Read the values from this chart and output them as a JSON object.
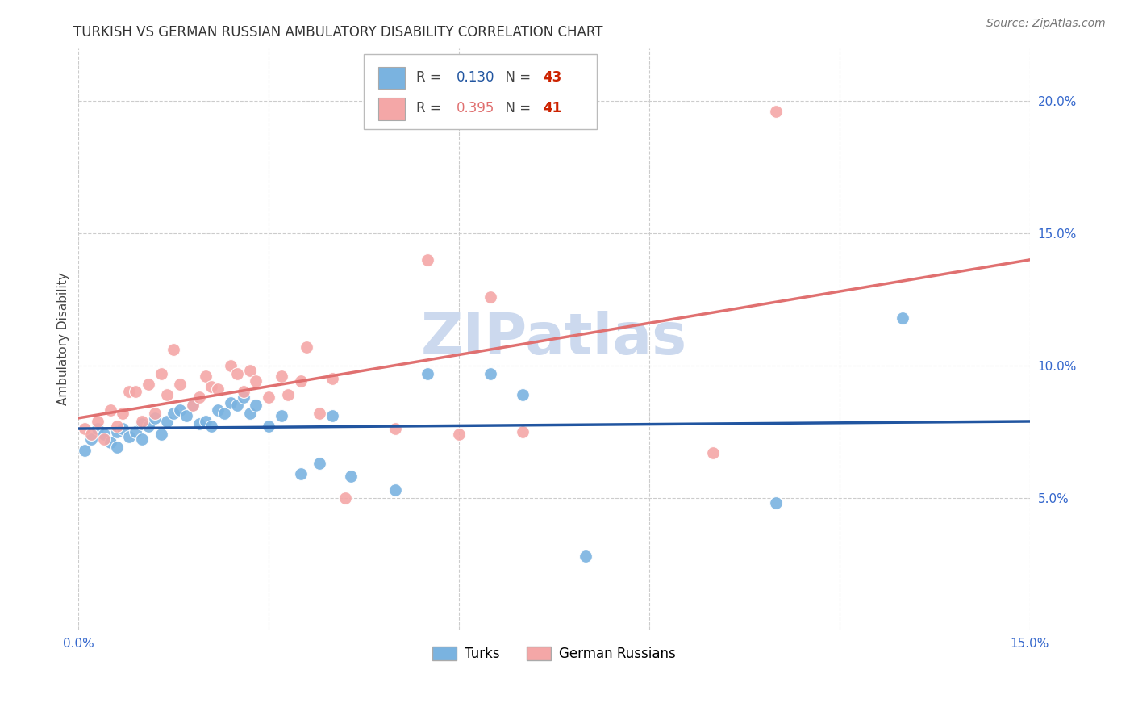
{
  "title": "TURKISH VS GERMAN RUSSIAN AMBULATORY DISABILITY CORRELATION CHART",
  "source": "Source: ZipAtlas.com",
  "ylabel": "Ambulatory Disability",
  "xlim": [
    0.0,
    0.15
  ],
  "ylim": [
    0.0,
    0.22
  ],
  "xtick_positions": [
    0.0,
    0.03,
    0.06,
    0.09,
    0.12,
    0.15
  ],
  "xtick_labels": [
    "0.0%",
    "",
    "",
    "",
    "",
    "15.0%"
  ],
  "ytick_right_vals": [
    0.05,
    0.1,
    0.15,
    0.2
  ],
  "ytick_right_labels": [
    "5.0%",
    "10.0%",
    "15.0%",
    "20.0%"
  ],
  "turks_color": "#7ab3e0",
  "german_russians_color": "#f4a7a7",
  "turks_line_color": "#2155a0",
  "german_russians_line_color": "#e07070",
  "turks_R": 0.13,
  "turks_N": 43,
  "german_russians_R": 0.395,
  "german_russians_N": 41,
  "turks_x": [
    0.001,
    0.002,
    0.003,
    0.004,
    0.005,
    0.006,
    0.006,
    0.007,
    0.008,
    0.009,
    0.01,
    0.01,
    0.011,
    0.012,
    0.013,
    0.014,
    0.015,
    0.016,
    0.017,
    0.018,
    0.019,
    0.02,
    0.021,
    0.022,
    0.023,
    0.024,
    0.025,
    0.026,
    0.027,
    0.028,
    0.03,
    0.032,
    0.035,
    0.038,
    0.04,
    0.043,
    0.05,
    0.055,
    0.065,
    0.07,
    0.08,
    0.11,
    0.13
  ],
  "turks_y": [
    0.068,
    0.072,
    0.076,
    0.074,
    0.071,
    0.075,
    0.069,
    0.076,
    0.073,
    0.075,
    0.078,
    0.072,
    0.077,
    0.08,
    0.074,
    0.079,
    0.082,
    0.083,
    0.081,
    0.085,
    0.078,
    0.079,
    0.077,
    0.083,
    0.082,
    0.086,
    0.085,
    0.088,
    0.082,
    0.085,
    0.077,
    0.081,
    0.059,
    0.063,
    0.081,
    0.058,
    0.053,
    0.097,
    0.097,
    0.089,
    0.028,
    0.048,
    0.118
  ],
  "german_russians_x": [
    0.001,
    0.002,
    0.003,
    0.004,
    0.005,
    0.006,
    0.007,
    0.008,
    0.009,
    0.01,
    0.011,
    0.012,
    0.013,
    0.014,
    0.015,
    0.016,
    0.018,
    0.019,
    0.02,
    0.021,
    0.022,
    0.024,
    0.025,
    0.026,
    0.027,
    0.028,
    0.03,
    0.032,
    0.033,
    0.035,
    0.036,
    0.038,
    0.04,
    0.042,
    0.05,
    0.055,
    0.06,
    0.065,
    0.07,
    0.1,
    0.11
  ],
  "german_russians_y": [
    0.076,
    0.074,
    0.079,
    0.072,
    0.083,
    0.077,
    0.082,
    0.09,
    0.09,
    0.079,
    0.093,
    0.082,
    0.097,
    0.089,
    0.106,
    0.093,
    0.085,
    0.088,
    0.096,
    0.092,
    0.091,
    0.1,
    0.097,
    0.09,
    0.098,
    0.094,
    0.088,
    0.096,
    0.089,
    0.094,
    0.107,
    0.082,
    0.095,
    0.05,
    0.076,
    0.14,
    0.074,
    0.126,
    0.075,
    0.067,
    0.196
  ],
  "background_color": "#ffffff",
  "grid_color": "#cccccc",
  "watermark_text": "ZIPatlas",
  "watermark_color": "#ccd9ee"
}
